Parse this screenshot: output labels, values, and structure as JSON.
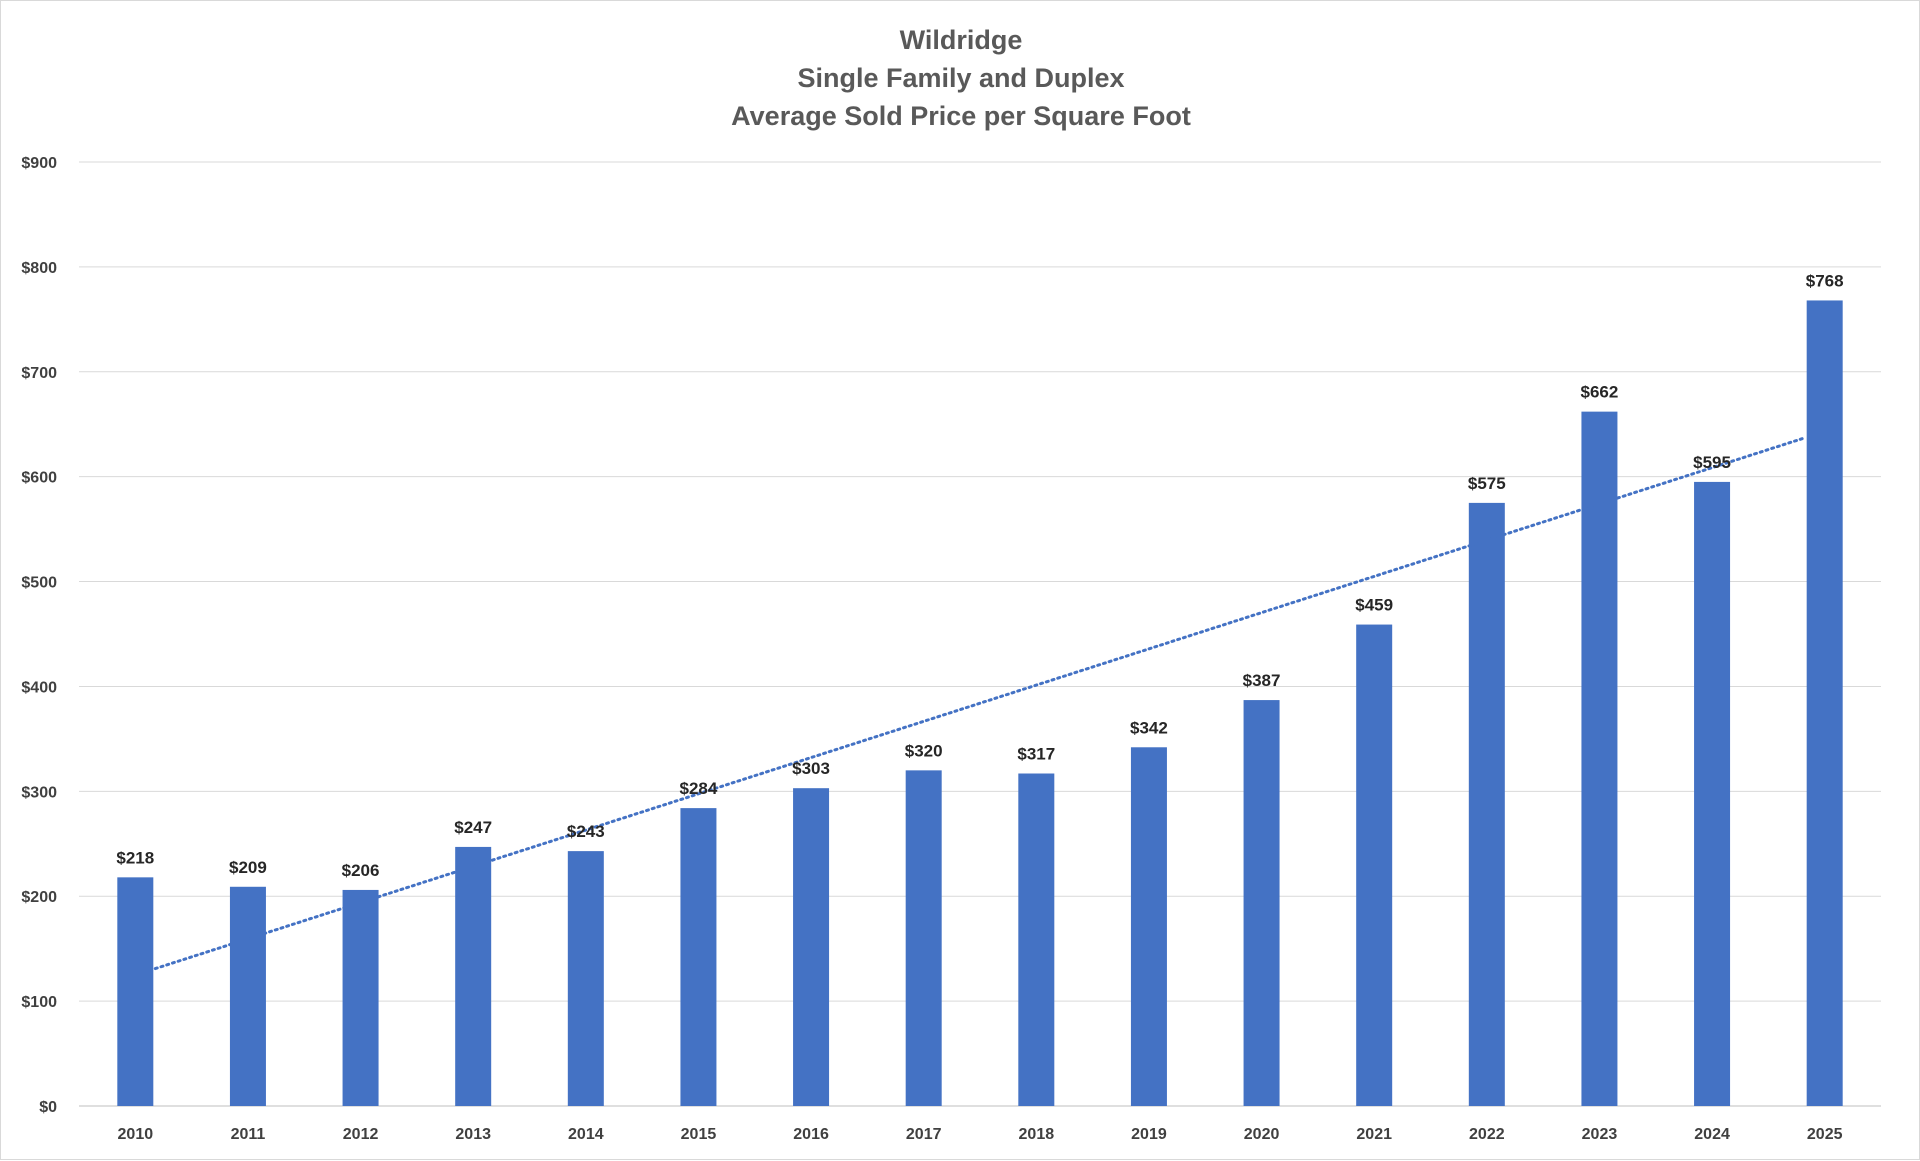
{
  "chart_data": {
    "type": "bar",
    "title": [
      "Wildridge",
      "Single Family and Duplex",
      "Average Sold Price per Square Foot"
    ],
    "categories": [
      "2010",
      "2011",
      "2012",
      "2013",
      "2014",
      "2015",
      "2016",
      "2017",
      "2018",
      "2019",
      "2020",
      "2021",
      "2022",
      "2023",
      "2024",
      "2025"
    ],
    "values": [
      218,
      209,
      206,
      247,
      243,
      284,
      303,
      320,
      317,
      342,
      387,
      459,
      575,
      662,
      595,
      768
    ],
    "data_labels": [
      "$218",
      "$209",
      "$206",
      "$247",
      "$243",
      "$284",
      "$303",
      "$320",
      "$317",
      "$342",
      "$387",
      "$459",
      "$575",
      "$662",
      "$595",
      "$768"
    ],
    "y_ticks": [
      0,
      100,
      200,
      300,
      400,
      500,
      600,
      700,
      800,
      900
    ],
    "y_tick_labels": [
      "$0",
      "$100",
      "$200",
      "$300",
      "$400",
      "$500",
      "$600",
      "$700",
      "$800",
      "$900"
    ],
    "ylim": [
      0,
      900
    ],
    "xlabel": "",
    "ylabel": "",
    "grid": true,
    "legend": "none",
    "trendline": {
      "type": "linear",
      "style": "dotted",
      "start": [
        2010,
        131
      ],
      "end": [
        2025,
        637
      ]
    },
    "colors": {
      "bar": "#4472C4",
      "trendline": "#4472C4",
      "grid": "#d9d9d9",
      "title": "#595959",
      "tick": "#404040",
      "data_label": "#262626"
    }
  }
}
